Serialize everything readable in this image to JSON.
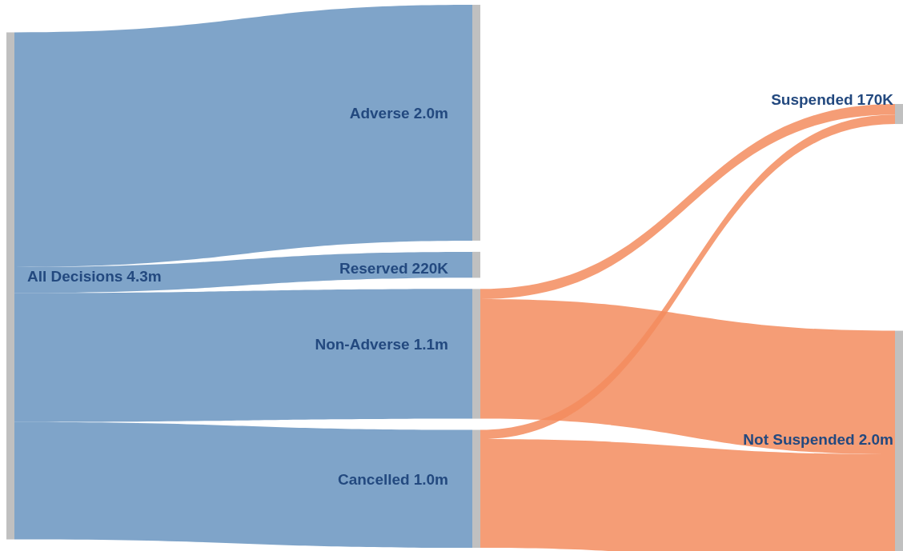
{
  "chart_data": {
    "type": "other",
    "categories": [
      "All Decisions",
      "Adverse",
      "Reserved",
      "Non-Adverse",
      "Cancelled",
      "Suspended",
      "Not Suspended"
    ],
    "values": [
      4300000,
      2000000,
      220000,
      1100000,
      1000000,
      170000,
      2000000
    ],
    "value_labels": [
      "4.3m",
      "2.0m",
      "220K",
      "1.1m",
      "1.0m",
      "170K",
      "2.0m"
    ]
  }
}
